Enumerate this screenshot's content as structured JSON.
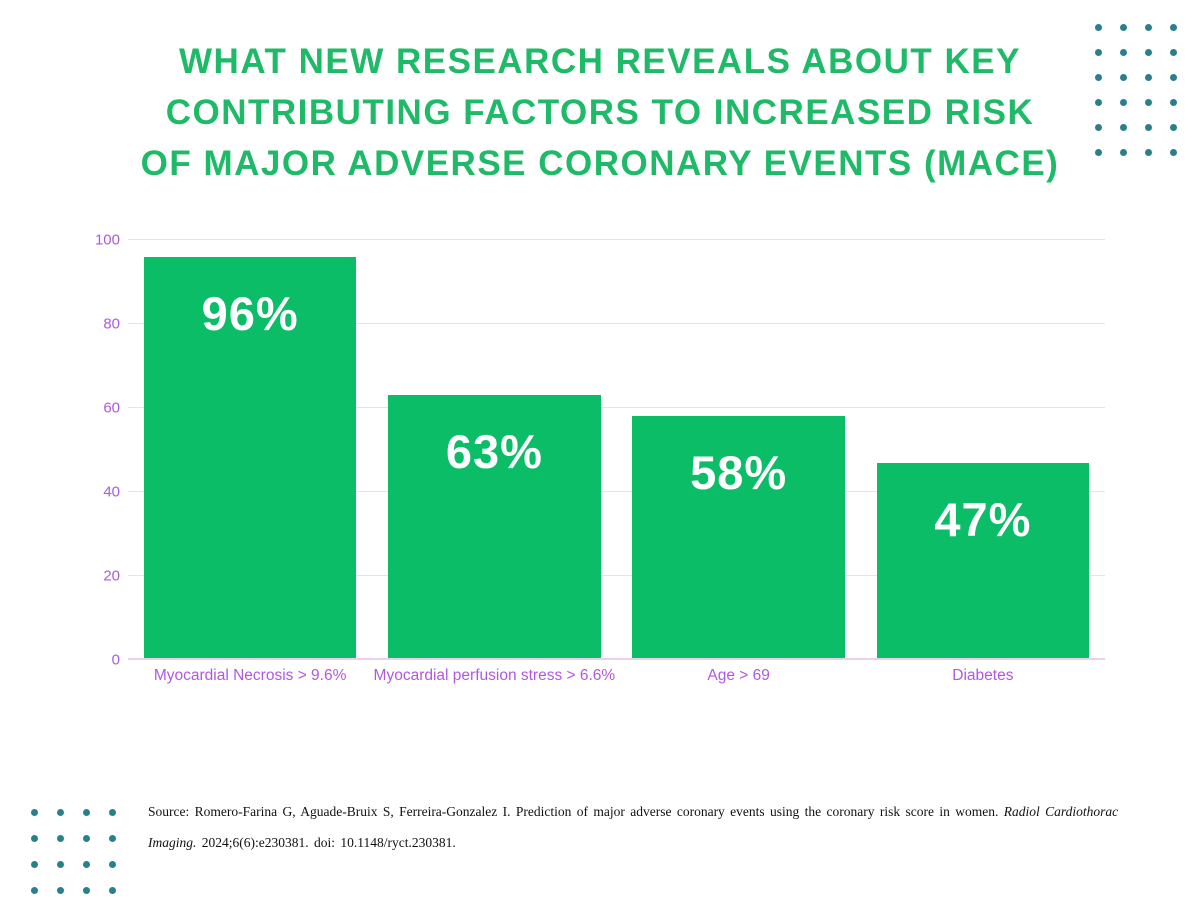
{
  "title": {
    "lines": [
      "WHAT NEW RESEARCH REVEALS ABOUT KEY",
      "CONTRIBUTING FACTORS TO INCREASED RISK",
      "OF MAJOR ADVERSE CORONARY EVENTS (MACE)"
    ],
    "color": "#1FBA68"
  },
  "chart_data": {
    "type": "bar",
    "categories": [
      "Myocardial Necrosis > 9.6%",
      "Myocardial perfusion stress > 6.6%",
      "Age > 69",
      "Diabetes"
    ],
    "values": [
      96,
      63,
      58,
      47
    ],
    "value_labels": [
      "96%",
      "63%",
      "58%",
      "47%"
    ],
    "title": "",
    "xlabel": "",
    "ylabel": "",
    "ylim": [
      0,
      100
    ],
    "y_ticks": [
      0,
      20,
      40,
      60,
      80,
      100
    ],
    "grid": true,
    "legend": false,
    "colors": {
      "bar": "#0ABD66",
      "axis_text": "#B158E0",
      "gridline": "#F2DCF4",
      "baseline": "#EBD0EE",
      "value_label": "#FFFFFF"
    }
  },
  "decor": {
    "dot_color": "#2A7F8C",
    "top_right": {
      "cols": 4,
      "rows": 6
    },
    "bottom_left": {
      "cols": 4,
      "rows": 4
    }
  },
  "source": {
    "line1_text": "Source: Romero-Farina G, Aguade-Bruix S, Ferreira-Gonzalez I. Prediction of major adverse coronary events using the coronary risk score in women. ",
    "line1_italic": "Radiol Cardiothorac",
    "line2_italic": "Imaging.",
    "line2_text": " 2024;6(6):e230381. doi: 10.1148/ryct.230381."
  }
}
